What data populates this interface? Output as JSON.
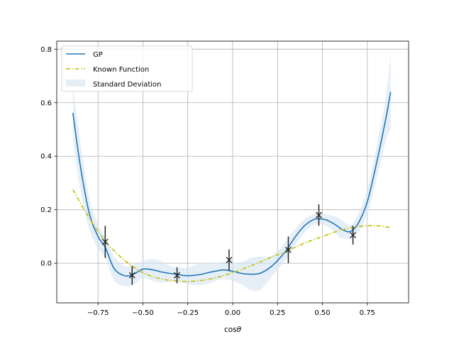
{
  "chart_data": {
    "type": "line",
    "title": "",
    "xlabel": "cosθ",
    "ylabel": "",
    "xlim": [
      -0.98,
      0.98
    ],
    "ylim": [
      -0.148,
      0.83
    ],
    "grid": true,
    "legend_placement": "top-left",
    "x_ticks": [
      -0.75,
      -0.5,
      -0.25,
      0.0,
      0.25,
      0.5,
      0.75
    ],
    "x_tick_labels": [
      "−0.75",
      "−0.50",
      "−0.25",
      "0.00",
      "0.25",
      "0.50",
      "0.75"
    ],
    "y_ticks": [
      0.0,
      0.2,
      0.4,
      0.6,
      0.8
    ],
    "y_tick_labels": [
      "0.0",
      "0.2",
      "0.4",
      "0.6",
      "0.8"
    ],
    "colors": {
      "gp": "#1f77b4",
      "known": "#bfbf00",
      "band": "#d6e5f3",
      "data": "#222222",
      "grid": "#b0b0b0"
    },
    "series": [
      {
        "name": "GP",
        "style": "solid",
        "x": [
          -0.89,
          -0.85,
          -0.8,
          -0.75,
          -0.71,
          -0.66,
          -0.6,
          -0.55,
          -0.5,
          -0.45,
          -0.4,
          -0.35,
          -0.31,
          -0.27,
          -0.23,
          -0.18,
          -0.13,
          -0.09,
          -0.05,
          0.0,
          0.05,
          0.1,
          0.15,
          0.2,
          0.25,
          0.3,
          0.35,
          0.4,
          0.45,
          0.48,
          0.52,
          0.57,
          0.6,
          0.63,
          0.66,
          0.7,
          0.75,
          0.8,
          0.85,
          0.88
        ],
        "y": [
          0.562,
          0.37,
          0.19,
          0.1,
          0.06,
          -0.02,
          -0.047,
          -0.04,
          -0.022,
          -0.024,
          -0.032,
          -0.038,
          -0.041,
          -0.046,
          -0.046,
          -0.042,
          -0.034,
          -0.029,
          -0.025,
          -0.03,
          -0.038,
          -0.041,
          -0.038,
          -0.02,
          0.01,
          0.05,
          0.1,
          0.14,
          0.163,
          0.166,
          0.162,
          0.145,
          0.13,
          0.12,
          0.12,
          0.15,
          0.23,
          0.37,
          0.53,
          0.64
        ]
      },
      {
        "name": "Known Function",
        "style": "dash-dot",
        "x": [
          -0.89,
          -0.8,
          -0.7,
          -0.6,
          -0.5,
          -0.4,
          -0.3,
          -0.2,
          -0.1,
          0.0,
          0.1,
          0.2,
          0.3,
          0.4,
          0.5,
          0.6,
          0.7,
          0.8,
          0.88
        ],
        "y": [
          0.275,
          0.17,
          0.075,
          0.01,
          -0.035,
          -0.058,
          -0.067,
          -0.066,
          -0.055,
          -0.035,
          -0.01,
          0.018,
          0.045,
          0.075,
          0.1,
          0.123,
          0.137,
          0.14,
          0.133
        ]
      }
    ],
    "band": {
      "name": "Standard Deviation",
      "x": [
        -0.89,
        -0.85,
        -0.8,
        -0.75,
        -0.71,
        -0.66,
        -0.6,
        -0.55,
        -0.5,
        -0.45,
        -0.4,
        -0.35,
        -0.31,
        -0.27,
        -0.23,
        -0.18,
        -0.13,
        -0.09,
        -0.05,
        0.0,
        0.05,
        0.1,
        0.15,
        0.2,
        0.25,
        0.3,
        0.35,
        0.4,
        0.45,
        0.48,
        0.52,
        0.57,
        0.6,
        0.63,
        0.66,
        0.7,
        0.75,
        0.8,
        0.85,
        0.88
      ],
      "upper": [
        0.66,
        0.46,
        0.25,
        0.145,
        0.1,
        0.025,
        -0.01,
        -0.005,
        0.008,
        0.016,
        0.008,
        -0.01,
        -0.015,
        -0.018,
        -0.012,
        0.0,
        0.002,
        0.002,
        0.005,
        0.002,
        0.005,
        0.02,
        0.025,
        0.025,
        0.045,
        0.085,
        0.13,
        0.165,
        0.183,
        0.185,
        0.183,
        0.175,
        0.165,
        0.15,
        0.145,
        0.185,
        0.275,
        0.43,
        0.61,
        0.78
      ],
      "lower": [
        0.46,
        0.28,
        0.13,
        0.055,
        0.02,
        -0.065,
        -0.085,
        -0.08,
        -0.055,
        -0.065,
        -0.072,
        -0.07,
        -0.067,
        -0.074,
        -0.08,
        -0.082,
        -0.075,
        -0.065,
        -0.06,
        -0.066,
        -0.08,
        -0.1,
        -0.101,
        -0.065,
        -0.025,
        0.015,
        0.07,
        0.115,
        0.143,
        0.147,
        0.14,
        0.115,
        0.095,
        0.09,
        0.095,
        0.115,
        0.185,
        0.31,
        0.45,
        0.5
      ]
    },
    "observations": {
      "x": [
        -0.71,
        -0.56,
        -0.31,
        -0.02,
        0.31,
        0.48,
        0.67
      ],
      "y": [
        0.08,
        -0.045,
        -0.045,
        0.012,
        0.05,
        0.18,
        0.105
      ],
      "err": [
        0.06,
        0.035,
        0.03,
        0.04,
        0.05,
        0.04,
        0.035
      ]
    },
    "legend": [
      "GP",
      "Known Function",
      "Standard Deviation"
    ]
  }
}
